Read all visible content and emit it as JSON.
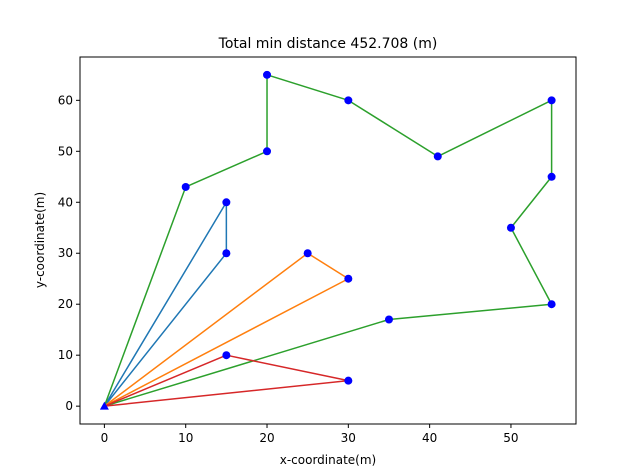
{
  "chart_data": {
    "type": "line",
    "title": "Total min distance 452.708 (m)",
    "xlabel": "x-coordinate(m)",
    "ylabel": "y-coordinate(m)",
    "xlim": [
      -3,
      58
    ],
    "ylim": [
      -3.5,
      68.5
    ],
    "xticks": [
      0,
      10,
      20,
      30,
      40,
      50
    ],
    "yticks": [
      0,
      10,
      20,
      30,
      40,
      50,
      60
    ],
    "grid": false,
    "depot": {
      "x": 0,
      "y": 0,
      "marker": "triangle",
      "color": "#0000ff"
    },
    "point_color": "#0000ff",
    "routes": [
      {
        "color": "#1f77b4",
        "points": [
          [
            0,
            0
          ],
          [
            15,
            40
          ],
          [
            15,
            30
          ],
          [
            0,
            0
          ]
        ]
      },
      {
        "color": "#ff7f0e",
        "points": [
          [
            0,
            0
          ],
          [
            25,
            30
          ],
          [
            30,
            25
          ],
          [
            0,
            0
          ]
        ]
      },
      {
        "color": "#2ca02c",
        "points": [
          [
            0,
            0
          ],
          [
            10,
            43
          ],
          [
            20,
            50
          ],
          [
            20,
            65
          ],
          [
            30,
            60
          ],
          [
            41,
            49
          ],
          [
            55,
            60
          ],
          [
            55,
            45
          ],
          [
            50,
            35
          ],
          [
            55,
            20
          ],
          [
            35,
            17
          ],
          [
            0,
            0
          ]
        ]
      },
      {
        "color": "#d62728",
        "points": [
          [
            0,
            0
          ],
          [
            15,
            10
          ],
          [
            30,
            5
          ],
          [
            0,
            0
          ]
        ]
      }
    ]
  }
}
